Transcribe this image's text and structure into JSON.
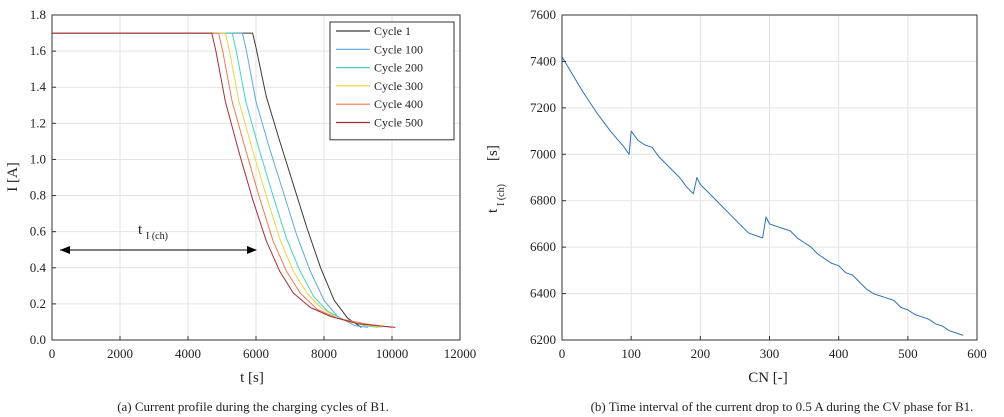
{
  "chart_data": [
    {
      "type": "line",
      "xlabel": "t [s]",
      "ylabel": "I [A]",
      "xlim": [
        0,
        12000
      ],
      "ylim": [
        0,
        1.8
      ],
      "xticks": [
        0,
        2000,
        4000,
        6000,
        8000,
        10000,
        12000
      ],
      "yticks": [
        0,
        0.2,
        0.4,
        0.6,
        0.8,
        1.0,
        1.2,
        1.4,
        1.6,
        1.8
      ],
      "ytick_labels": [
        "0.0",
        "0.2",
        "0.4",
        "0.6",
        "0.8",
        "1.0",
        "1.2",
        "1.4",
        "1.6",
        "1.8"
      ],
      "grid": true,
      "legend": "top-right",
      "caption": "(a) Current profile during the charging cycles of B1.",
      "annotation": {
        "text": "t",
        "subscript": "I (ch)",
        "arrow_from": [
          200,
          0.5
        ],
        "arrow_to": [
          5950,
          0.5
        ]
      },
      "series": [
        {
          "name": "Cycle 1",
          "color": "#3a3a3a",
          "x": [
            0,
            5900,
            6000,
            6300,
            6700,
            7100,
            7500,
            7900,
            8300,
            8700,
            9100
          ],
          "y": [
            1.7,
            1.7,
            1.62,
            1.35,
            1.1,
            0.86,
            0.62,
            0.4,
            0.22,
            0.12,
            0.07
          ]
        },
        {
          "name": "Cycle 100",
          "color": "#5fa8e0",
          "x": [
            0,
            5600,
            5720,
            6000,
            6400,
            6800,
            7200,
            7600,
            8000,
            8400,
            8900,
            9300
          ],
          "y": [
            1.7,
            1.7,
            1.6,
            1.32,
            1.06,
            0.82,
            0.58,
            0.38,
            0.22,
            0.13,
            0.08,
            0.07
          ]
        },
        {
          "name": "Cycle 200",
          "color": "#47d3b4",
          "x": [
            0,
            5300,
            5420,
            5700,
            6100,
            6500,
            6900,
            7300,
            7700,
            8100,
            8600,
            9200,
            9600
          ],
          "y": [
            1.7,
            1.7,
            1.6,
            1.32,
            1.05,
            0.8,
            0.56,
            0.38,
            0.24,
            0.16,
            0.11,
            0.08,
            0.07
          ]
        },
        {
          "name": "Cycle 300",
          "color": "#e8d64a",
          "x": [
            0,
            5100,
            5220,
            5500,
            5900,
            6300,
            6700,
            7100,
            7500,
            7900,
            8400,
            9000,
            9700
          ],
          "y": [
            1.7,
            1.7,
            1.6,
            1.32,
            1.05,
            0.8,
            0.56,
            0.38,
            0.26,
            0.18,
            0.12,
            0.09,
            0.07
          ]
        },
        {
          "name": "Cycle 400",
          "color": "#ef7b50",
          "x": [
            0,
            4900,
            5020,
            5300,
            5700,
            6100,
            6500,
            6900,
            7300,
            7800,
            8400,
            9200,
            10000
          ],
          "y": [
            1.7,
            1.7,
            1.6,
            1.32,
            1.05,
            0.79,
            0.55,
            0.38,
            0.26,
            0.17,
            0.12,
            0.09,
            0.07
          ]
        },
        {
          "name": "Cycle 500",
          "color": "#a0303a",
          "x": [
            0,
            4700,
            4820,
            5100,
            5500,
            5900,
            6300,
            6700,
            7100,
            7600,
            8200,
            9000,
            10100
          ],
          "y": [
            1.7,
            1.7,
            1.6,
            1.32,
            1.04,
            0.78,
            0.55,
            0.38,
            0.26,
            0.18,
            0.13,
            0.09,
            0.07
          ]
        }
      ]
    },
    {
      "type": "line",
      "xlabel": "CN [-]",
      "ylabel": "t",
      "ylabel_sub": "I (ch)",
      "ylabel_unit": "[s]",
      "xlim": [
        0,
        600
      ],
      "ylim": [
        6200,
        7600
      ],
      "xticks": [
        0,
        100,
        200,
        300,
        400,
        500,
        600
      ],
      "yticks": [
        6200,
        6400,
        6600,
        6800,
        7000,
        7200,
        7400,
        7600
      ],
      "grid": true,
      "caption": "(b) Time interval of the current drop to 0.5 A during the CV phase for B1.",
      "series": [
        {
          "color": "#2f74b5",
          "x": [
            0,
            10,
            20,
            30,
            40,
            50,
            60,
            70,
            80,
            90,
            97,
            100,
            105,
            110,
            120,
            130,
            140,
            150,
            160,
            170,
            180,
            190,
            195,
            200,
            210,
            220,
            230,
            240,
            250,
            260,
            270,
            280,
            290,
            295,
            300,
            310,
            320,
            330,
            340,
            350,
            360,
            370,
            380,
            390,
            400,
            410,
            420,
            430,
            440,
            450,
            460,
            470,
            480,
            490,
            500,
            510,
            520,
            530,
            540,
            550,
            560,
            570,
            580
          ],
          "y": [
            7420,
            7370,
            7320,
            7270,
            7225,
            7180,
            7140,
            7100,
            7065,
            7030,
            7000,
            7100,
            7080,
            7060,
            7040,
            7030,
            6990,
            6960,
            6930,
            6900,
            6860,
            6830,
            6900,
            6870,
            6840,
            6810,
            6780,
            6750,
            6720,
            6690,
            6660,
            6650,
            6640,
            6730,
            6700,
            6690,
            6680,
            6670,
            6640,
            6620,
            6600,
            6570,
            6550,
            6530,
            6520,
            6490,
            6480,
            6450,
            6420,
            6400,
            6390,
            6380,
            6370,
            6340,
            6330,
            6310,
            6300,
            6290,
            6270,
            6260,
            6240,
            6230,
            6220
          ]
        }
      ]
    }
  ]
}
